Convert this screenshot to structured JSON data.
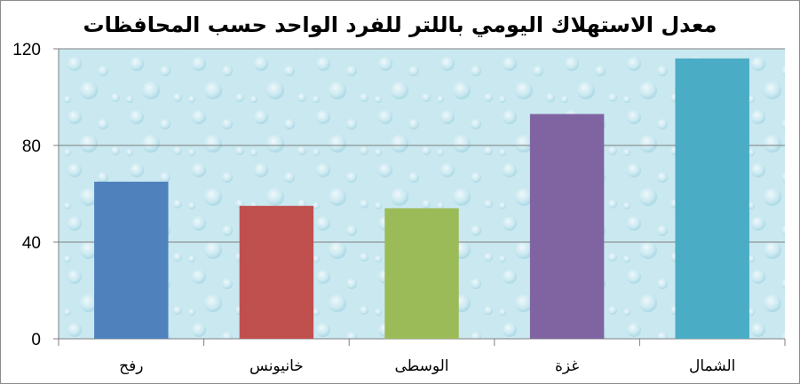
{
  "chart_data": {
    "type": "bar",
    "title": "معدل الاستهلاك اليومي باللتر للفرد الواحد حسب المحافظات",
    "xlabel": "",
    "ylabel": "",
    "categories": [
      "رفح",
      "خانيونس",
      "الوسطى",
      "غزة",
      "الشمال"
    ],
    "values": [
      65,
      55,
      54,
      93,
      116
    ],
    "colors": [
      "#4f81bd",
      "#c0504d",
      "#9bbb59",
      "#8064a2",
      "#4bacc6"
    ],
    "ylim": [
      0,
      120
    ],
    "yticks": [
      0,
      40,
      80,
      120
    ],
    "grid": true,
    "legend": "none",
    "plot_background": "#c9e8f0"
  }
}
